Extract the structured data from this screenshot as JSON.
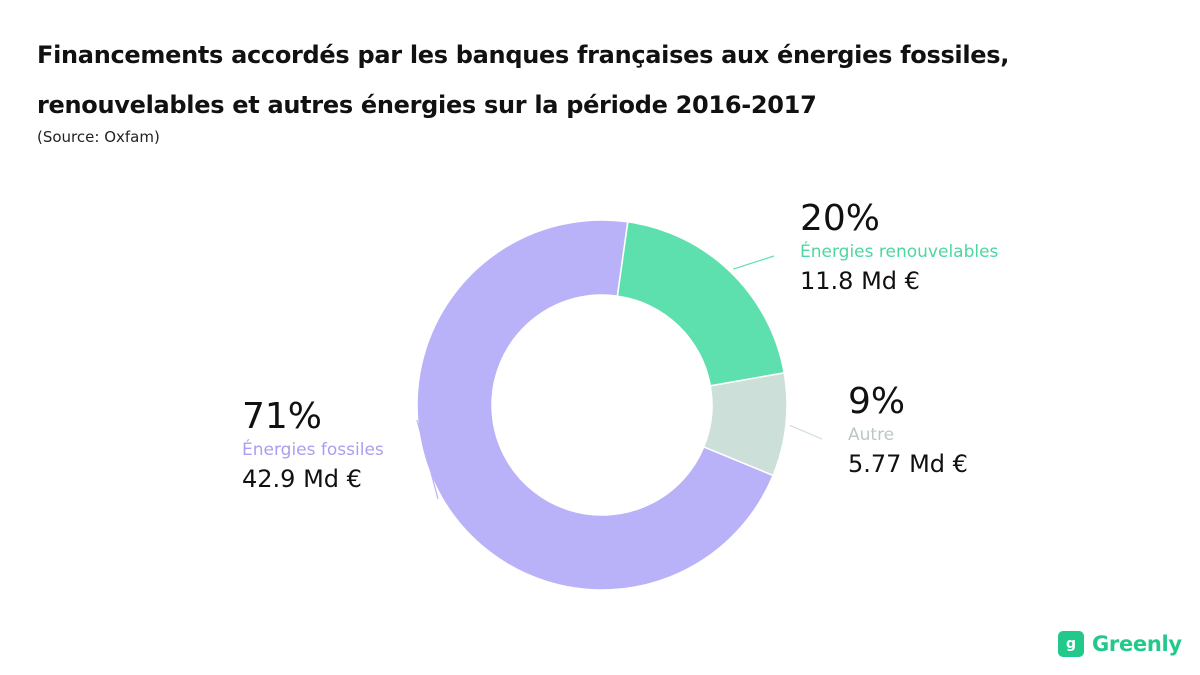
{
  "title_line1": "Financements accordés par les banques françaises aux énergies fossiles,",
  "title_line2": "renouvelables et autres énergies sur la période 2016-2017",
  "source": "(Source: Oxfam)",
  "brand": {
    "name": "Greenly",
    "icon": "leaf-logo-icon",
    "color": "#22c98a"
  },
  "chart_data": {
    "type": "pie",
    "donut": true,
    "slices": [
      {
        "name": "Énergies renouvelables",
        "percent_label": "20%",
        "percent": 20,
        "amount_label": "11.8 Md €",
        "amount": 11.8,
        "color": "#5ee0ae"
      },
      {
        "name": "Autre",
        "percent_label": "9%",
        "percent": 9,
        "amount_label": "5.77 Md €",
        "amount": 5.77,
        "color": "#ccdfd8"
      },
      {
        "name": "Énergies fossiles",
        "percent_label": "71%",
        "percent": 71,
        "amount_label": "42.9 Md €",
        "amount": 42.9,
        "color": "#b9b2f8"
      }
    ],
    "label_colors": {
      "Énergies renouvelables": "#4ed6a0",
      "Autre": "#b8c9c2",
      "Énergies fossiles": "#a8a0ee"
    }
  }
}
